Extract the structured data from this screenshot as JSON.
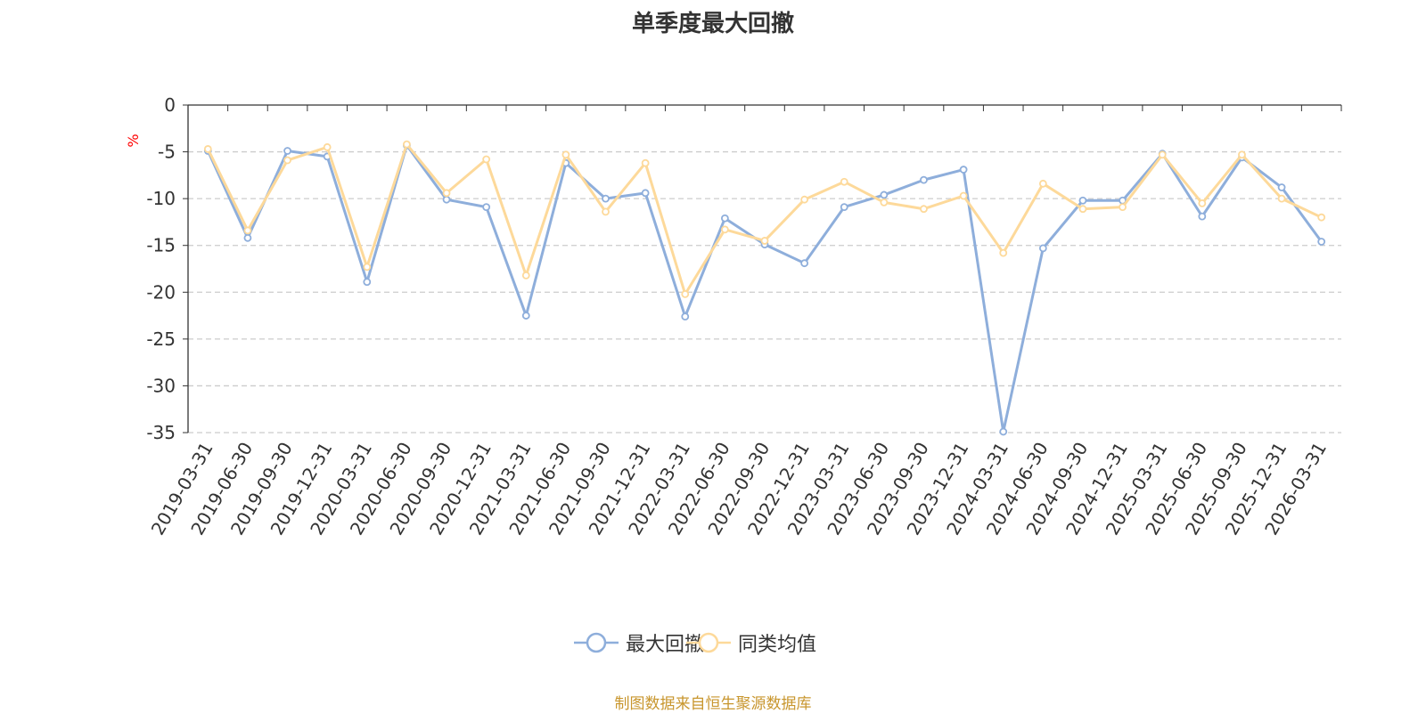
{
  "chart_data": {
    "type": "line",
    "title": "单季度最大回撤",
    "ylabel": "%",
    "ylim": [
      -35,
      0
    ],
    "yticks": [
      0,
      -5,
      -10,
      -15,
      -20,
      -25,
      -30,
      -35
    ],
    "grid": true,
    "legend_position": "bottom",
    "categories": [
      "2019-03-31",
      "2019-06-30",
      "2019-09-30",
      "2019-12-31",
      "2020-03-31",
      "2020-06-30",
      "2020-09-30",
      "2020-12-31",
      "2021-03-31",
      "2021-06-30",
      "2021-09-30",
      "2021-12-31",
      "2022-03-31",
      "2022-06-30",
      "2022-09-30",
      "2022-12-31",
      "2023-03-31",
      "2023-06-30",
      "2023-09-30",
      "2023-12-31",
      "2024-03-31",
      "2024-06-30",
      "2024-09-30",
      "2024-12-31",
      "2025-03-31",
      "2025-06-30",
      "2025-09-30",
      "2025-12-31",
      "2026-03-31"
    ],
    "series": [
      {
        "name": "最大回撤",
        "color": "#8eaedb",
        "values": [
          -4.9,
          -14.2,
          -4.9,
          -5.5,
          -18.9,
          -4.3,
          -10.1,
          -10.9,
          -22.5,
          -6.2,
          -10.0,
          -9.4,
          -22.6,
          -12.1,
          -14.9,
          -16.9,
          -10.9,
          -9.6,
          -8.0,
          -6.9,
          -34.9,
          -15.3,
          -10.2,
          -10.2,
          -5.2,
          -11.9,
          -5.6,
          -8.8,
          -14.6
        ]
      },
      {
        "name": "同类均值",
        "color": "#fdd99a",
        "values": [
          -4.7,
          -13.4,
          -5.9,
          -4.5,
          -17.3,
          -4.2,
          -9.4,
          -5.8,
          -18.2,
          -5.3,
          -11.4,
          -6.2,
          -20.2,
          -13.3,
          -14.5,
          -10.1,
          -8.2,
          -10.4,
          -11.1,
          -9.7,
          -15.8,
          -8.4,
          -11.1,
          -10.9,
          -5.3,
          -10.5,
          -5.3,
          -10.0,
          -12.0
        ]
      }
    ]
  },
  "source": "制图数据来自恒生聚源数据库"
}
